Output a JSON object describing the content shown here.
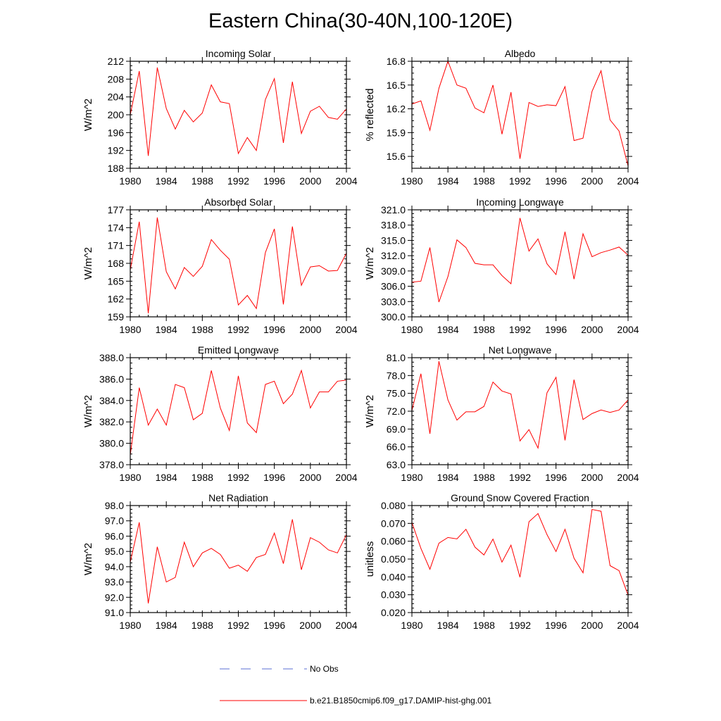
{
  "title": "Eastern China(30-40N,100-120E)",
  "chart_data": [
    {
      "type": "line",
      "title": "Incoming Solar",
      "ylabel": "W/m^2",
      "xlim": [
        1980,
        2004
      ],
      "ylim": [
        188,
        212
      ],
      "yticks": [
        "188",
        "192",
        "196",
        "200",
        "204",
        "208",
        "212"
      ],
      "xticks": [
        "1980",
        "1984",
        "1988",
        "1992",
        "1996",
        "2000",
        "2004"
      ],
      "x": [
        1980,
        1981,
        1982,
        1983,
        1984,
        1985,
        1986,
        1987,
        1988,
        1989,
        1990,
        1991,
        1992,
        1993,
        1994,
        1995,
        1996,
        1997,
        1998,
        1999,
        2000,
        2001,
        2002,
        2003,
        2004
      ],
      "series": [
        {
          "name": "b.e21.B1850cmip6.f09_g17.DAMIP-hist-ghg.001",
          "values": [
            200.0,
            209.8,
            190.8,
            210.6,
            201.4,
            196.8,
            201.0,
            198.4,
            200.4,
            206.7,
            202.9,
            202.5,
            191.3,
            194.9,
            192.0,
            203.4,
            208.1,
            193.7,
            207.4,
            195.8,
            200.8,
            201.9,
            199.4,
            199.0,
            201.3
          ]
        }
      ]
    },
    {
      "type": "line",
      "title": "Albedo",
      "ylabel": "% reflected",
      "xlim": [
        1980,
        2004
      ],
      "ylim": [
        15.45,
        16.8
      ],
      "yticks": [
        "15.6",
        "15.9",
        "16.2",
        "16.5",
        "16.8"
      ],
      "xticks": [
        "1980",
        "1984",
        "1988",
        "1992",
        "1996",
        "2000",
        "2004"
      ],
      "x": [
        1980,
        1981,
        1982,
        1983,
        1984,
        1985,
        1986,
        1987,
        1988,
        1989,
        1990,
        1991,
        1992,
        1993,
        1994,
        1995,
        1996,
        1997,
        1998,
        1999,
        2000,
        2001,
        2002,
        2003,
        2004
      ],
      "series": [
        {
          "name": "b.e21.B1850cmip6.f09_g17.DAMIP-hist-ghg.001",
          "values": [
            16.26,
            16.3,
            15.93,
            16.46,
            16.8,
            16.5,
            16.46,
            16.21,
            16.15,
            16.5,
            15.88,
            16.41,
            15.57,
            16.28,
            16.23,
            16.25,
            16.24,
            16.48,
            15.8,
            15.83,
            16.42,
            16.68,
            16.06,
            15.92,
            15.48
          ]
        }
      ]
    },
    {
      "type": "line",
      "title": "Absorbed Solar",
      "ylabel": "W/m^2",
      "xlim": [
        1980,
        2004
      ],
      "ylim": [
        159,
        177
      ],
      "yticks": [
        "159",
        "162",
        "165",
        "168",
        "171",
        "174",
        "177"
      ],
      "xticks": [
        "1980",
        "1984",
        "1988",
        "1992",
        "1996",
        "2000",
        "2004"
      ],
      "x": [
        1980,
        1981,
        1982,
        1983,
        1984,
        1985,
        1986,
        1987,
        1988,
        1989,
        1990,
        1991,
        1992,
        1993,
        1994,
        1995,
        1996,
        1997,
        1998,
        1999,
        2000,
        2001,
        2002,
        2003,
        2004
      ],
      "series": [
        {
          "name": "b.e21.B1850cmip6.f09_g17.DAMIP-hist-ghg.001",
          "values": [
            166.9,
            175.0,
            159.6,
            175.7,
            166.6,
            163.7,
            167.3,
            165.8,
            167.5,
            172.0,
            170.2,
            168.7,
            161.0,
            162.6,
            160.4,
            169.8,
            173.8,
            161.1,
            174.2,
            164.3,
            167.4,
            167.6,
            166.7,
            166.8,
            169.7
          ]
        }
      ]
    },
    {
      "type": "line",
      "title": "Incoming Longwave",
      "ylabel": "W/m^2",
      "xlim": [
        1980,
        2004
      ],
      "ylim": [
        300,
        321
      ],
      "yticks": [
        "300.0",
        "303.0",
        "306.0",
        "309.0",
        "312.0",
        "315.0",
        "318.0",
        "321.0"
      ],
      "xticks": [
        "1980",
        "1984",
        "1988",
        "1992",
        "1996",
        "2000",
        "2004"
      ],
      "x": [
        1980,
        1981,
        1982,
        1983,
        1984,
        1985,
        1986,
        1987,
        1988,
        1989,
        1990,
        1991,
        1992,
        1993,
        1994,
        1995,
        1996,
        1997,
        1998,
        1999,
        2000,
        2001,
        2002,
        2003,
        2004
      ],
      "series": [
        {
          "name": "b.e21.B1850cmip6.f09_g17.DAMIP-hist-ghg.001",
          "values": [
            306.8,
            307.0,
            313.6,
            302.9,
            307.9,
            315.1,
            313.6,
            310.5,
            310.2,
            310.2,
            308.1,
            306.5,
            319.4,
            312.9,
            315.3,
            310.4,
            308.3,
            316.7,
            307.4,
            316.3,
            311.8,
            312.6,
            313.1,
            313.7,
            312.1
          ]
        }
      ]
    },
    {
      "type": "line",
      "title": "Emitted Longwave",
      "ylabel": "W/m^2",
      "xlim": [
        1980,
        2004
      ],
      "ylim": [
        378,
        388
      ],
      "yticks": [
        "378.0",
        "380.0",
        "382.0",
        "384.0",
        "386.0",
        "388.0"
      ],
      "xticks": [
        "1980",
        "1984",
        "1988",
        "1992",
        "1996",
        "2000",
        "2004"
      ],
      "x": [
        1980,
        1981,
        1982,
        1983,
        1984,
        1985,
        1986,
        1987,
        1988,
        1989,
        1990,
        1991,
        1992,
        1993,
        1994,
        1995,
        1996,
        1997,
        1998,
        1999,
        2000,
        2001,
        2002,
        2003,
        2004
      ],
      "series": [
        {
          "name": "b.e21.B1850cmip6.f09_g17.DAMIP-hist-ghg.001",
          "values": [
            378.9,
            385.2,
            381.7,
            383.2,
            381.7,
            385.5,
            385.2,
            382.2,
            382.8,
            386.8,
            383.3,
            381.2,
            386.3,
            381.9,
            381.0,
            385.5,
            385.8,
            383.7,
            384.6,
            386.8,
            383.3,
            384.8,
            384.8,
            385.8,
            385.9
          ]
        }
      ]
    },
    {
      "type": "line",
      "title": "Net Longwave",
      "ylabel": "W/m^2",
      "xlim": [
        1980,
        2004
      ],
      "ylim": [
        63,
        81
      ],
      "yticks": [
        "63.0",
        "66.0",
        "69.0",
        "72.0",
        "75.0",
        "78.0",
        "81.0"
      ],
      "xticks": [
        "1980",
        "1984",
        "1988",
        "1992",
        "1996",
        "2000",
        "2004"
      ],
      "x": [
        1980,
        1981,
        1982,
        1983,
        1984,
        1985,
        1986,
        1987,
        1988,
        1989,
        1990,
        1991,
        1992,
        1993,
        1994,
        1995,
        1996,
        1997,
        1998,
        1999,
        2000,
        2001,
        2002,
        2003,
        2004
      ],
      "series": [
        {
          "name": "b.e21.B1850cmip6.f09_g17.DAMIP-hist-ghg.001",
          "values": [
            72.1,
            78.3,
            68.2,
            80.4,
            73.9,
            70.5,
            71.9,
            71.9,
            72.8,
            76.9,
            75.4,
            74.9,
            67.0,
            68.9,
            65.8,
            75.1,
            77.7,
            67.1,
            77.3,
            70.6,
            71.6,
            72.2,
            71.8,
            72.2,
            73.9
          ]
        }
      ]
    },
    {
      "type": "line",
      "title": "Net Radiation",
      "ylabel": "W/m^2",
      "xlim": [
        1980,
        2004
      ],
      "ylim": [
        91,
        98
      ],
      "yticks": [
        "91.0",
        "92.0",
        "93.0",
        "94.0",
        "95.0",
        "96.0",
        "97.0",
        "98.0"
      ],
      "xticks": [
        "1980",
        "1984",
        "1988",
        "1992",
        "1996",
        "2000",
        "2004"
      ],
      "x": [
        1980,
        1981,
        1982,
        1983,
        1984,
        1985,
        1986,
        1987,
        1988,
        1989,
        1990,
        1991,
        1992,
        1993,
        1994,
        1995,
        1996,
        1997,
        1998,
        1999,
        2000,
        2001,
        2002,
        2003,
        2004
      ],
      "series": [
        {
          "name": "b.e21.B1850cmip6.f09_g17.DAMIP-hist-ghg.001",
          "values": [
            94.3,
            96.9,
            91.6,
            95.3,
            93.0,
            93.3,
            95.6,
            94.0,
            94.9,
            95.2,
            94.8,
            93.9,
            94.1,
            93.7,
            94.6,
            94.8,
            96.2,
            94.2,
            97.1,
            93.8,
            95.9,
            95.6,
            95.1,
            94.9,
            96.1
          ]
        }
      ]
    },
    {
      "type": "line",
      "title": "Ground Snow Covered Fraction",
      "ylabel": "unitless",
      "xlim": [
        1980,
        2004
      ],
      "ylim": [
        0.02,
        0.08
      ],
      "yticks": [
        "0.020",
        "0.030",
        "0.040",
        "0.050",
        "0.060",
        "0.070",
        "0.080"
      ],
      "xticks": [
        "1980",
        "1984",
        "1988",
        "1992",
        "1996",
        "2000",
        "2004"
      ],
      "x": [
        1980,
        1981,
        1982,
        1983,
        1984,
        1985,
        1986,
        1987,
        1988,
        1989,
        1990,
        1991,
        1992,
        1993,
        1994,
        1995,
        1996,
        1997,
        1998,
        1999,
        2000,
        2001,
        2002,
        2003,
        2004
      ],
      "series": [
        {
          "name": "b.e21.B1850cmip6.f09_g17.DAMIP-hist-ghg.001",
          "values": [
            0.0705,
            0.056,
            0.0443,
            0.0589,
            0.0621,
            0.0613,
            0.0667,
            0.0567,
            0.0523,
            0.0612,
            0.0483,
            0.0578,
            0.0398,
            0.0709,
            0.0755,
            0.0637,
            0.0542,
            0.0667,
            0.0505,
            0.0423,
            0.0778,
            0.0768,
            0.0463,
            0.0435,
            0.0298
          ]
        }
      ]
    }
  ],
  "legend": [
    {
      "label": "No Obs",
      "color": "#5a6fd6",
      "style": "dashed"
    },
    {
      "label": "b.e21.B1850cmip6.f09_g17.DAMIP-hist-ghg.001",
      "color": "#ff0000",
      "style": "solid"
    }
  ],
  "colors": {
    "series": "#ff0000",
    "axis": "#000000"
  }
}
